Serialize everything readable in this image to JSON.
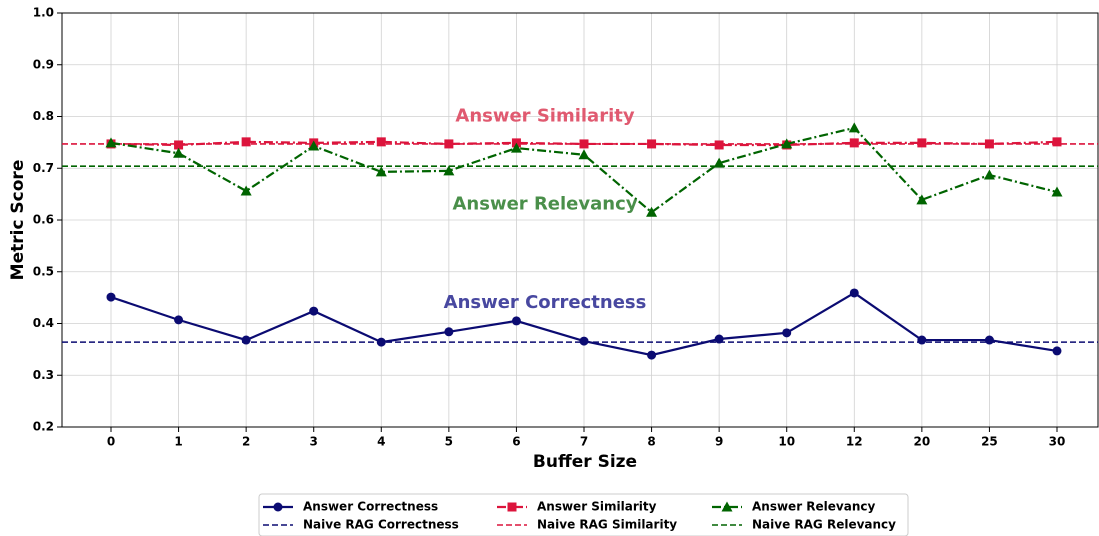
{
  "chart_data": {
    "type": "line",
    "x_label": "Buffer Size",
    "y_label": "Metric Score",
    "categories": [
      "0",
      "1",
      "2",
      "3",
      "4",
      "5",
      "6",
      "7",
      "8",
      "9",
      "10",
      "12",
      "20",
      "25",
      "30"
    ],
    "series": [
      {
        "name": "Answer Correctness",
        "color": "#0b0b72",
        "marker": "circle",
        "linestyle": "solid",
        "values": [
          0.451,
          0.407,
          0.368,
          0.424,
          0.364,
          0.384,
          0.405,
          0.366,
          0.339,
          0.37,
          0.382,
          0.459,
          0.368,
          0.368,
          0.347
        ]
      },
      {
        "name": "Answer Similarity",
        "color": "#dc143c",
        "marker": "square",
        "linestyle": "dashdot",
        "values": [
          0.747,
          0.745,
          0.751,
          0.749,
          0.751,
          0.747,
          0.749,
          0.747,
          0.747,
          0.745,
          0.745,
          0.749,
          0.749,
          0.747,
          0.751
        ]
      },
      {
        "name": "Answer Relevancy",
        "color": "#006400",
        "marker": "triangle",
        "linestyle": "dashdot",
        "values": [
          0.749,
          0.729,
          0.656,
          0.743,
          0.693,
          0.695,
          0.739,
          0.726,
          0.615,
          0.71,
          0.747,
          0.778,
          0.639,
          0.687,
          0.654
        ]
      }
    ],
    "reference_lines": [
      {
        "name": "Naive RAG Correctness",
        "color": "#0b0b72",
        "value": 0.364
      },
      {
        "name": "Naive RAG Similarity",
        "color": "#dc143c",
        "value": 0.747
      },
      {
        "name": "Naive RAG Relevancy",
        "color": "#006400",
        "value": 0.704
      }
    ],
    "annotations": [
      {
        "text": "Answer Similarity",
        "color": "#e05a70",
        "value": 0.8
      },
      {
        "text": "Answer Relevancy",
        "color": "#4a8f4a",
        "value": 0.63
      },
      {
        "text": "Answer Correctness",
        "color": "#4848a0",
        "value": 0.44
      }
    ],
    "ylim": [
      0.2,
      1.0
    ],
    "yticks": [
      0.2,
      0.3,
      0.4,
      0.5,
      0.6,
      0.7,
      0.8,
      0.9,
      {
        "value": 1.0,
        "label": "1.0"
      }
    ],
    "grid": true,
    "legend": "bottom"
  }
}
